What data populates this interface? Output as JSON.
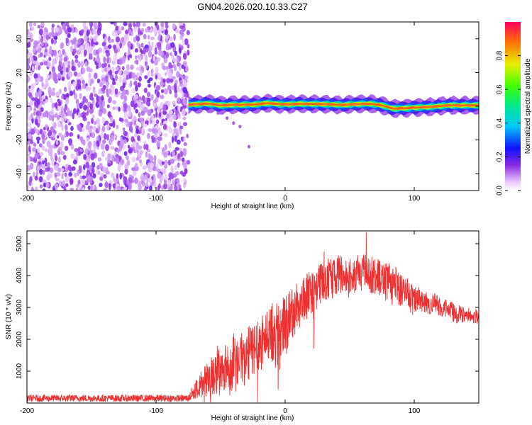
{
  "title": "GN04.2026.020.10.33.C27",
  "chart_data": [
    {
      "type": "heatmap",
      "title": "GN04.2026.020.10.33.C27",
      "xlabel": "Height of straight line (km)",
      "ylabel": "Frequency (Hz)",
      "xlim": [
        -200,
        150
      ],
      "ylim": [
        -50,
        50
      ],
      "xticks": [
        -200,
        -100,
        0,
        100
      ],
      "yticks": [
        -40,
        -20,
        0,
        20,
        40
      ],
      "colorbar": {
        "label": "Normalized spectral amplitude",
        "range": [
          0.0,
          1.0
        ],
        "ticks": [
          0.0,
          0.2,
          0.4,
          0.6,
          0.8
        ],
        "tick_labels": [
          "0.0",
          "0.2",
          "0.4",
          "0.6",
          "0.8"
        ]
      },
      "noise_region_x": [
        -200,
        -75
      ],
      "ridge": [
        {
          "x": -75,
          "freq": 1
        },
        {
          "x": -60,
          "freq": 1.5
        },
        {
          "x": -50,
          "freq": 0.5
        },
        {
          "x": -40,
          "freq": 0.8
        },
        {
          "x": -25,
          "freq": 1
        },
        {
          "x": -15,
          "freq": 1.8
        },
        {
          "x": 0,
          "freq": 1
        },
        {
          "x": 15,
          "freq": 1.5
        },
        {
          "x": 30,
          "freq": 1.2
        },
        {
          "x": 45,
          "freq": 0.8
        },
        {
          "x": 55,
          "freq": 1.2
        },
        {
          "x": 65,
          "freq": 1.5
        },
        {
          "x": 75,
          "freq": 0.5
        },
        {
          "x": 85,
          "freq": -1.5
        },
        {
          "x": 95,
          "freq": -1
        },
        {
          "x": 110,
          "freq": -0.5
        },
        {
          "x": 125,
          "freq": 0.5
        },
        {
          "x": 150,
          "freq": 0.5
        }
      ]
    },
    {
      "type": "line",
      "xlabel": "Height of straight line (km)",
      "ylabel": "SNR (10 * v/v)",
      "xlim": [
        -200,
        150
      ],
      "ylim": [
        0,
        5400
      ],
      "xticks": [
        -200,
        -100,
        0,
        100
      ],
      "yticks": [
        1000,
        2000,
        3000,
        4000,
        5000
      ],
      "series": [
        {
          "name": "SNR",
          "color": "#ee3030",
          "envelope": [
            {
              "x": -200,
              "mean": 150,
              "spread": 110
            },
            {
              "x": -75,
              "mean": 150,
              "spread": 110
            },
            {
              "x": -65,
              "mean": 600,
              "spread": 450
            },
            {
              "x": -55,
              "mean": 900,
              "spread": 650
            },
            {
              "x": -40,
              "mean": 1250,
              "spread": 800
            },
            {
              "x": -30,
              "mean": 1550,
              "spread": 850
            },
            {
              "x": -20,
              "mean": 1850,
              "spread": 900
            },
            {
              "x": -10,
              "mean": 2150,
              "spread": 950
            },
            {
              "x": 0,
              "mean": 2500,
              "spread": 900
            },
            {
              "x": 10,
              "mean": 3000,
              "spread": 800
            },
            {
              "x": 20,
              "mean": 3500,
              "spread": 700
            },
            {
              "x": 30,
              "mean": 3900,
              "spread": 650
            },
            {
              "x": 40,
              "mean": 4050,
              "spread": 600
            },
            {
              "x": 50,
              "mean": 4050,
              "spread": 600
            },
            {
              "x": 60,
              "mean": 4050,
              "spread": 600
            },
            {
              "x": 70,
              "mean": 4000,
              "spread": 600
            },
            {
              "x": 80,
              "mean": 3850,
              "spread": 600
            },
            {
              "x": 90,
              "mean": 3650,
              "spread": 550
            },
            {
              "x": 100,
              "mean": 3300,
              "spread": 420
            },
            {
              "x": 120,
              "mean": 3000,
              "spread": 300
            },
            {
              "x": 135,
              "mean": 2850,
              "spread": 260
            },
            {
              "x": 150,
              "mean": 2700,
              "spread": 230
            }
          ]
        }
      ]
    }
  ]
}
